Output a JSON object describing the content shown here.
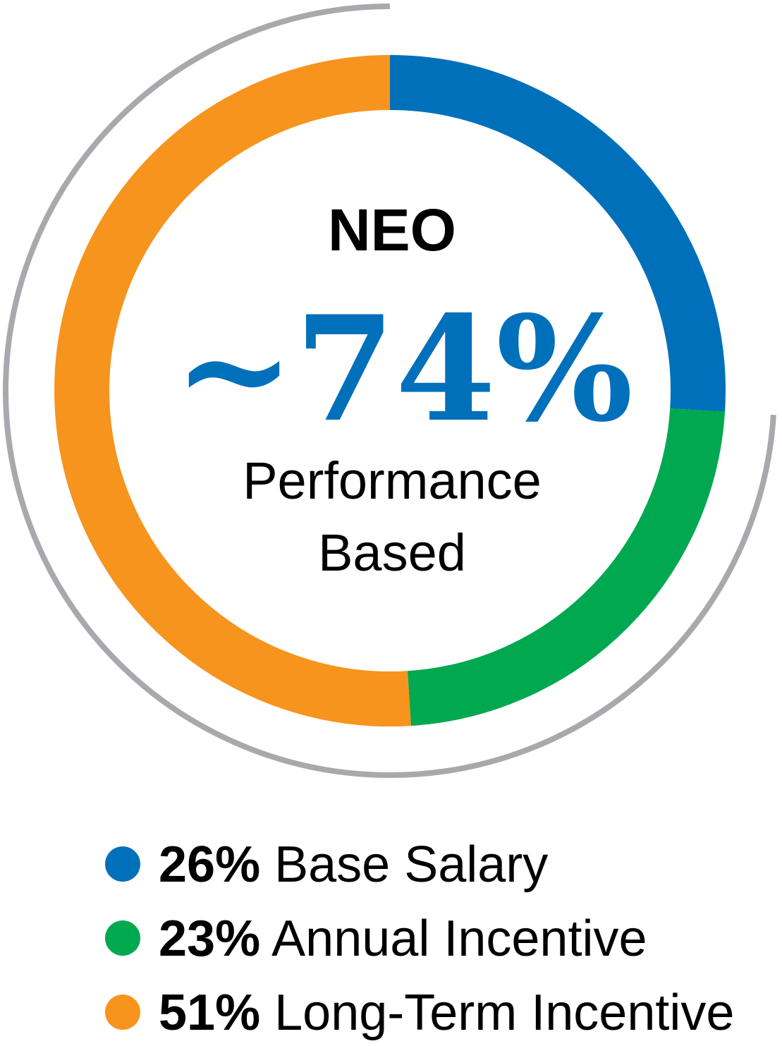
{
  "colors": {
    "outer_arc": "#a7a9ac",
    "value_text": "#0070ba",
    "text": "#000000"
  },
  "center": {
    "title": "NEO",
    "value": "~74%",
    "caption_line1": "Performance",
    "caption_line2": "Based"
  },
  "outer_arc": {
    "highlighted_share_percent": 74,
    "highlighted_series": [
      "Annual Incentive",
      "Long-Term Incentive"
    ]
  },
  "chart_data": {
    "type": "pie",
    "donut": true,
    "title": "",
    "start_angle": "12 o'clock",
    "direction": "clockwise",
    "legend_position": "bottom",
    "series": [
      {
        "name": "Base Salary",
        "value": 26,
        "value_label": "26%",
        "color": "#0070ba"
      },
      {
        "name": "Annual Incentive",
        "value": 23,
        "value_label": "23%",
        "color": "#00a84f"
      },
      {
        "name": "Long-Term Incentive",
        "value": 51,
        "value_label": "51%",
        "color": "#f7941d"
      }
    ]
  }
}
